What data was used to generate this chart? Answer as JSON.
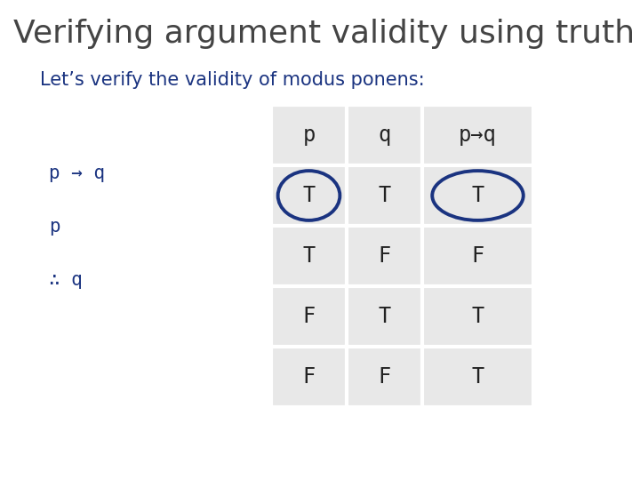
{
  "title": "Verifying argument validity using truth tables",
  "subtitle": "Let’s verify the validity of modus ponens:",
  "title_color": "#444444",
  "subtitle_color": "#1a3380",
  "bg_color": "#ffffff",
  "table_bg_light": "#e8e8e8",
  "table_bg_dark": "#d8d8d8",
  "col_headers": [
    "p",
    "q",
    "p→q"
  ],
  "rows": [
    [
      "T",
      "T",
      "T"
    ],
    [
      "T",
      "F",
      "F"
    ],
    [
      "F",
      "T",
      "T"
    ],
    [
      "F",
      "F",
      "T"
    ]
  ],
  "circle_row": 0,
  "circle_cols": [
    0,
    2
  ],
  "circle_color": "#1a3380",
  "premise_lines": [
    "p → q",
    "p",
    "∴ q"
  ],
  "premise_color": "#1a3380"
}
